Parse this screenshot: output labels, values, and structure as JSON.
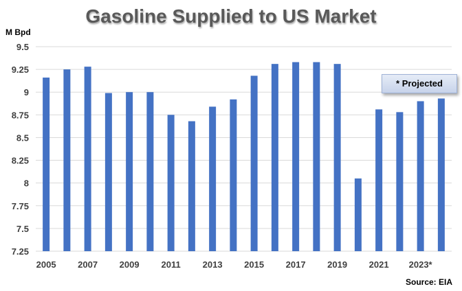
{
  "chart_data": {
    "type": "bar",
    "title": "Gasoline Supplied to US Market",
    "ylabel": "M Bpd",
    "ylim": [
      7.25,
      9.5
    ],
    "yticks": [
      "7.25",
      "7.5",
      "7.75",
      "8",
      "8.25",
      "8.5",
      "8.75",
      "9",
      "9.25",
      "9.5"
    ],
    "grid": true,
    "color": "#4472c4",
    "categories": [
      "2005",
      "2006",
      "2007",
      "2008",
      "2009",
      "2010",
      "2011",
      "2012",
      "2013",
      "2014",
      "2015",
      "2016",
      "2017",
      "2018",
      "2019",
      "2020",
      "2021",
      "2022",
      "2023*",
      "2024*"
    ],
    "xtick_labels": [
      "2005",
      "",
      "2007",
      "",
      "2009",
      "",
      "2011",
      "",
      "2013",
      "",
      "2015",
      "",
      "2017",
      "",
      "2019",
      "",
      "2021",
      "",
      "2023*",
      ""
    ],
    "values": [
      9.16,
      9.25,
      9.28,
      8.99,
      9.0,
      9.0,
      8.75,
      8.68,
      8.84,
      8.92,
      9.18,
      9.31,
      9.33,
      9.33,
      9.31,
      8.05,
      8.81,
      8.78,
      8.9,
      8.93
    ],
    "annotation": "* Projected",
    "source": "Source: EIA"
  }
}
